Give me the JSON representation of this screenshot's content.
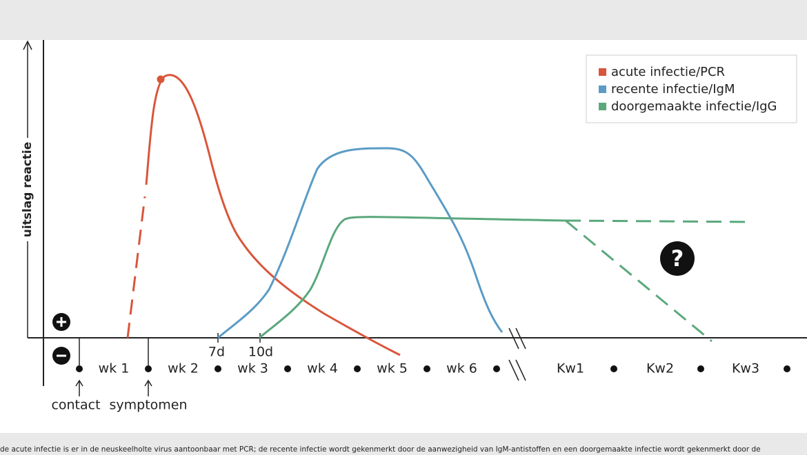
{
  "axis_label": "uitslag reactie",
  "legend": [
    "acute infectie/PCR",
    "recente infectie/IgM",
    "doorgemaakte infectie/IgG"
  ],
  "weeks": [
    "wk 1",
    "wk 2",
    "wk 3",
    "wk 4",
    "wk 5",
    "wk 6"
  ],
  "later_weeks": [
    "Kw1",
    "Kw2",
    "Kw3"
  ],
  "day_marks": [
    "7d",
    "10d"
  ],
  "events": [
    "contact",
    "symptomen"
  ],
  "question": "?",
  "caption": "de acute infectie is er in de neuskeelholte virus aantoonbaar met PCR; de recente infectie wordt gekenmerkt door de aanwezigheid van IgM-antistoffen en een doorgemaakte infectie wordt gekenmerkt door de"
}
